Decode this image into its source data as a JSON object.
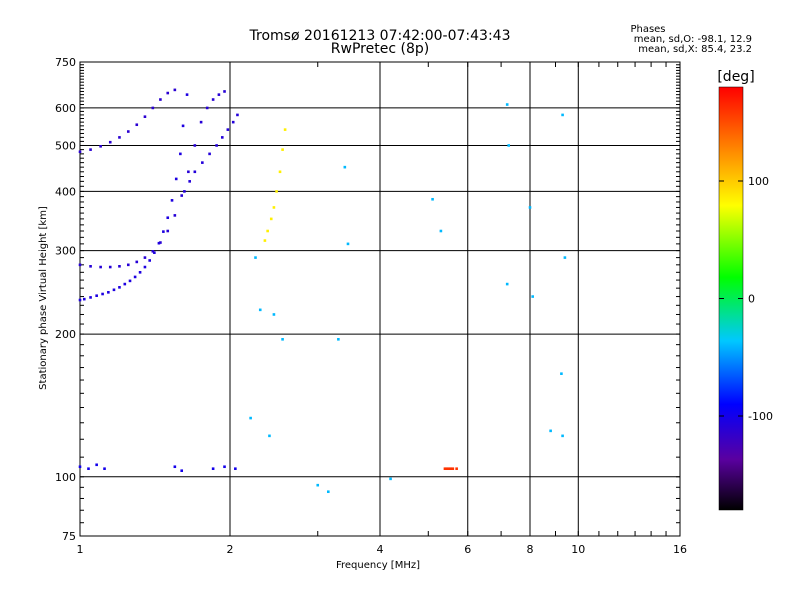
{
  "header": {
    "title_line1": "Tromsø 20161213 07:42:00-07:43:43",
    "title_line2": "RwPretec (8p)",
    "stats_title": "Phases",
    "stats_o": "mean, sd,O: -98.1, 12.9",
    "stats_x": "mean, sd,X:  85.4, 23.2"
  },
  "colorbar": {
    "label": "[deg]",
    "range": [
      -180,
      180
    ],
    "ticks": [
      "100",
      "0",
      "-100"
    ],
    "tick_values": [
      100,
      0,
      -100
    ]
  },
  "chart_data": {
    "type": "scatter",
    "title": "Tromsø 20161213 07:42:00-07:43:43",
    "subtitle": "RwPretec (8p)",
    "xlabel": "Frequency [MHz]",
    "ylabel": "Stationary phase Virtual Height [km]",
    "x_scale": "log2",
    "y_scale": "log",
    "xlim": [
      1,
      16
    ],
    "ylim": [
      75,
      750
    ],
    "x_ticks": [
      "1",
      "2",
      "4",
      "6",
      "8",
      "10",
      "16"
    ],
    "x_tick_values": [
      1,
      2,
      4,
      6,
      8,
      10,
      16
    ],
    "y_ticks": [
      "75",
      "100",
      "200",
      "300",
      "400",
      "500",
      "600",
      "750"
    ],
    "y_tick_values": [
      75,
      100,
      200,
      300,
      400,
      500,
      600,
      750
    ],
    "x_grid": [
      2,
      4,
      6,
      8,
      10
    ],
    "y_grid": [
      100,
      200,
      300,
      400,
      500,
      600
    ],
    "grid": true,
    "series": [
      {
        "trace": "lower-O-trace",
        "phase": -105,
        "x": [
          1.0,
          1.02,
          1.05,
          1.08,
          1.11,
          1.14,
          1.17,
          1.2,
          1.23,
          1.26,
          1.29,
          1.32,
          1.35,
          1.38,
          1.41,
          1.44,
          1.47,
          1.5,
          1.53,
          1.56,
          1.59,
          1.61,
          1.64
        ],
        "y": [
          236,
          237,
          239,
          241,
          243,
          245,
          248,
          251,
          255,
          259,
          264,
          270,
          277,
          286,
          297,
          311,
          329,
          352,
          383,
          425,
          480,
          550,
          640
        ]
      },
      {
        "trace": "middle-trace",
        "phase": -110,
        "x": [
          1.0,
          1.05,
          1.1,
          1.15,
          1.2,
          1.25,
          1.3,
          1.35,
          1.4,
          1.45,
          1.5,
          1.55,
          1.6,
          1.65,
          1.7,
          1.75,
          1.8,
          1.85,
          1.9,
          1.95
        ],
        "y": [
          280,
          278,
          277,
          277,
          278,
          280,
          284,
          290,
          299,
          312,
          330,
          356,
          392,
          440,
          500,
          560,
          600,
          625,
          640,
          650
        ]
      },
      {
        "trace": "upper-trace",
        "phase": -112,
        "x": [
          1.0,
          1.05,
          1.1,
          1.15,
          1.2,
          1.25,
          1.3,
          1.35,
          1.4,
          1.45,
          1.5,
          1.55
        ],
        "y": [
          485,
          490,
          498,
          508,
          520,
          535,
          553,
          575,
          600,
          625,
          645,
          655
        ]
      },
      {
        "trace": "spread-F-columns",
        "phase": -108,
        "x": [
          1.62,
          1.66,
          1.7,
          1.76,
          1.82,
          1.88,
          1.93,
          1.98,
          2.03,
          2.07
        ],
        "y": [
          400,
          420,
          440,
          460,
          480,
          500,
          520,
          540,
          560,
          580
        ]
      },
      {
        "trace": "X-trace",
        "phase": 85,
        "x": [
          2.35,
          2.38,
          2.42,
          2.45,
          2.48,
          2.52,
          2.55,
          2.58
        ],
        "y": [
          315,
          330,
          350,
          370,
          400,
          440,
          490,
          540
        ]
      },
      {
        "trace": "E-layer",
        "phase": -100,
        "x": [
          1.0,
          1.04,
          1.08,
          1.12,
          1.55,
          1.6,
          1.85,
          1.95,
          2.05
        ],
        "y": [
          105,
          104,
          106,
          104,
          105,
          103,
          104,
          105,
          104
        ]
      },
      {
        "trace": "sporadic-E-red",
        "phase": 160,
        "x": [
          5.4,
          5.45,
          5.5,
          5.55,
          5.6,
          5.7
        ],
        "y": [
          104,
          104,
          104,
          104,
          104,
          104
        ]
      },
      {
        "trace": "scattered",
        "phase": -40,
        "x": [
          2.25,
          2.3,
          2.45,
          2.55,
          3.4,
          3.45,
          3.3,
          4.2,
          5.1,
          5.3,
          7.2,
          7.25,
          8.0,
          8.1,
          9.3,
          9.4,
          9.25,
          8.8,
          9.3,
          7.2,
          2.2,
          2.4,
          3.0,
          3.15
        ],
        "y": [
          290,
          225,
          220,
          195,
          450,
          310,
          195,
          99,
          385,
          330,
          610,
          500,
          370,
          240,
          580,
          290,
          165,
          125,
          122,
          255,
          133,
          122,
          96,
          93
        ]
      }
    ]
  }
}
